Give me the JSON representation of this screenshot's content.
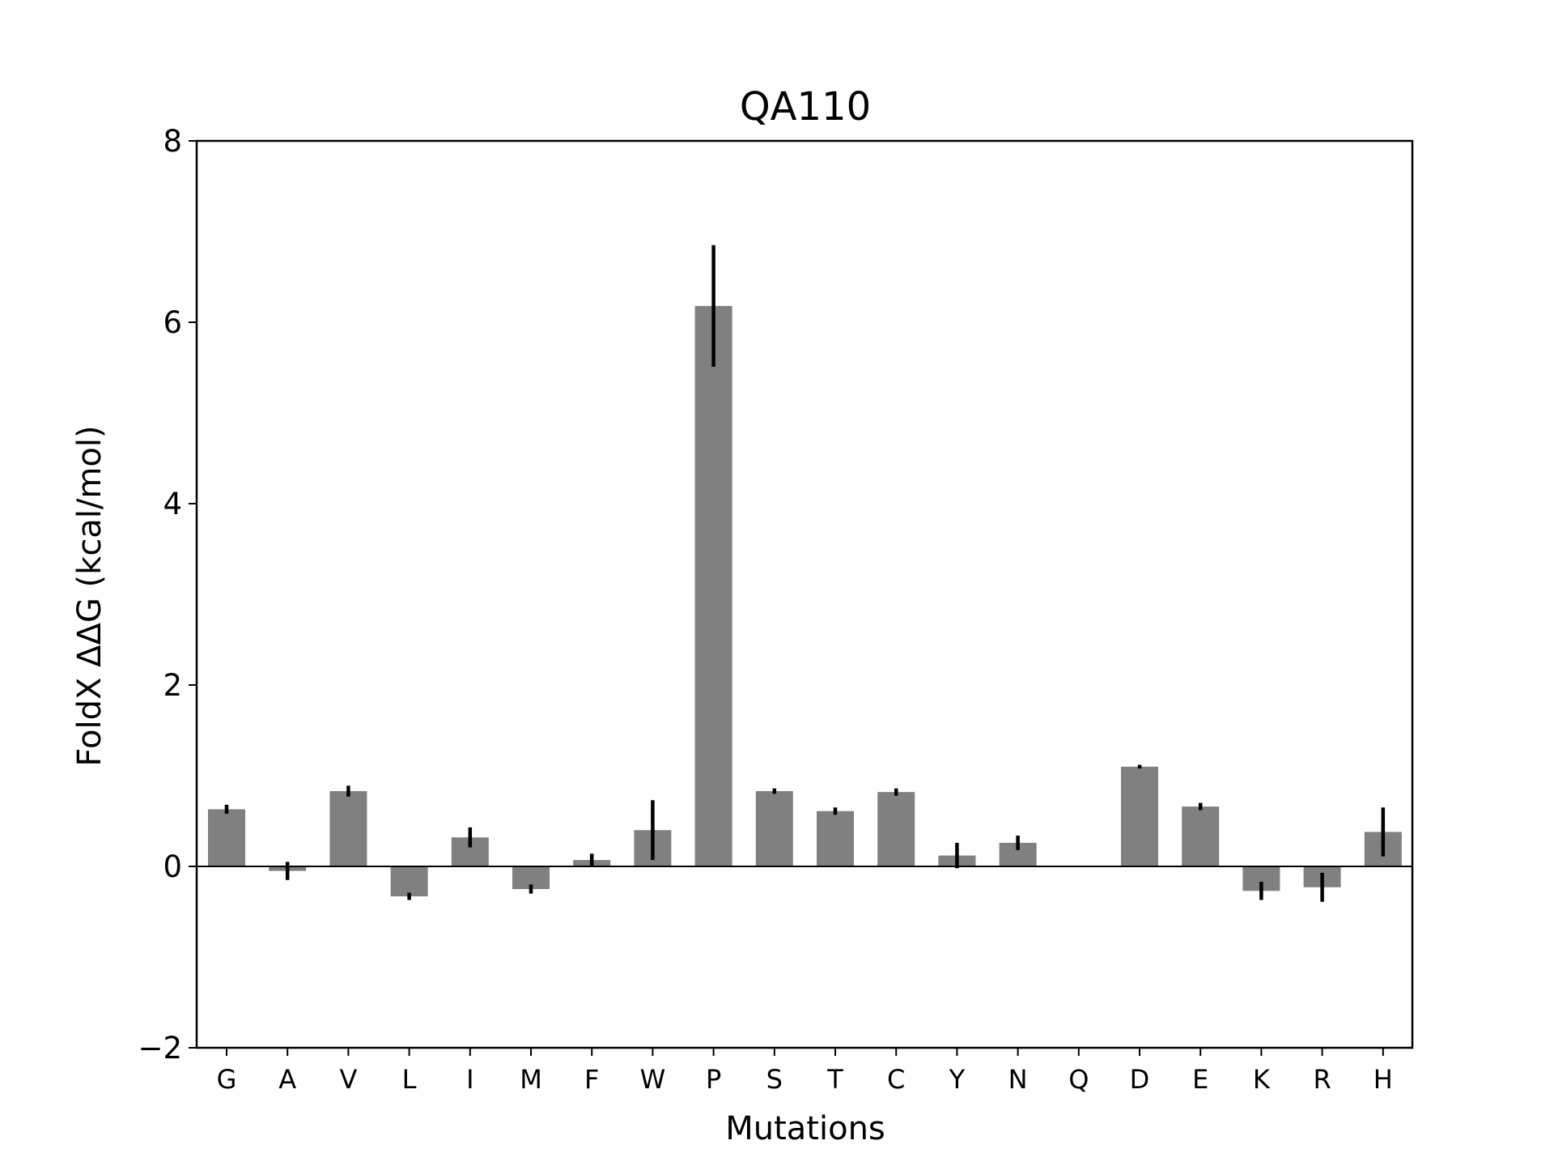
{
  "chart_data": {
    "type": "bar",
    "title": "QA110",
    "xlabel": "Mutations",
    "ylabel": "FoldX ΔΔG (kcal/mol)",
    "ylim": [
      -2,
      8
    ],
    "yticks": [
      8,
      6,
      4,
      2,
      0,
      -2
    ],
    "ytick_labels": [
      "8",
      "6",
      "4",
      "2",
      "0",
      "−2"
    ],
    "categories": [
      "G",
      "A",
      "V",
      "L",
      "I",
      "M",
      "F",
      "W",
      "P",
      "S",
      "T",
      "C",
      "Y",
      "N",
      "Q",
      "D",
      "E",
      "K",
      "R",
      "H"
    ],
    "values": [
      0.63,
      -0.05,
      0.83,
      -0.33,
      0.32,
      -0.25,
      0.07,
      0.4,
      6.18,
      0.83,
      0.61,
      0.82,
      0.12,
      0.26,
      0.0,
      1.1,
      0.66,
      -0.27,
      -0.23,
      0.38
    ],
    "errors": [
      0.05,
      0.1,
      0.06,
      0.04,
      0.11,
      0.05,
      0.07,
      0.33,
      0.67,
      0.03,
      0.04,
      0.04,
      0.14,
      0.08,
      0.0,
      0.02,
      0.04,
      0.1,
      0.16,
      0.27
    ],
    "bar_color": "#808080",
    "error_color": "#000000",
    "grid": false,
    "legend": false
  }
}
